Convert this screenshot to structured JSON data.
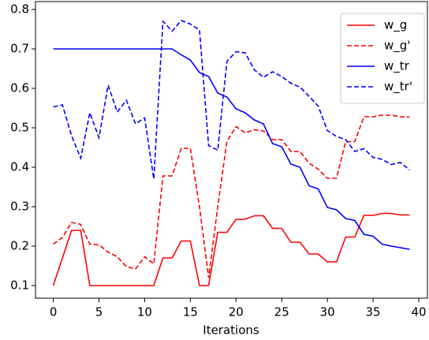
{
  "chart_data": {
    "type": "line",
    "xlabel": "Iterations",
    "x": [
      0,
      1,
      2,
      3,
      4,
      5,
      6,
      7,
      8,
      9,
      10,
      11,
      12,
      13,
      14,
      15,
      16,
      17,
      18,
      19,
      20,
      21,
      22,
      23,
      24,
      25,
      26,
      27,
      28,
      29,
      30,
      31,
      32,
      33,
      34,
      35,
      36,
      37,
      38,
      39
    ],
    "xlim": [
      -1.95,
      40.95
    ],
    "xticks": [
      0,
      5,
      10,
      15,
      20,
      25,
      30,
      35,
      40
    ],
    "ylim": [
      0.068,
      0.82
    ],
    "yticks": [
      0.1,
      0.2,
      0.3,
      0.4,
      0.5,
      0.6,
      0.7,
      0.8
    ],
    "legend": "upper right",
    "series": [
      {
        "name": "w_g",
        "color": "#ff0000",
        "linestyle": "solid",
        "values": [
          0.1,
          0.17,
          0.24,
          0.24,
          0.1,
          0.1,
          0.1,
          0.1,
          0.1,
          0.1,
          0.1,
          0.1,
          0.17,
          0.17,
          0.213,
          0.213,
          0.1,
          0.1,
          0.235,
          0.235,
          0.268,
          0.268,
          0.277,
          0.277,
          0.245,
          0.245,
          0.21,
          0.21,
          0.18,
          0.18,
          0.16,
          0.16,
          0.223,
          0.223,
          0.278,
          0.278,
          0.283,
          0.283,
          0.279,
          0.279
        ]
      },
      {
        "name": "w_g'",
        "color": "#ff0000",
        "linestyle": "dashed",
        "values": [
          0.205,
          0.222,
          0.26,
          0.255,
          0.205,
          0.203,
          0.185,
          0.173,
          0.148,
          0.142,
          0.173,
          0.155,
          0.378,
          0.378,
          0.448,
          0.448,
          0.3,
          0.12,
          0.3,
          0.465,
          0.503,
          0.487,
          0.495,
          0.492,
          0.47,
          0.47,
          0.44,
          0.44,
          0.41,
          0.395,
          0.372,
          0.372,
          0.465,
          0.465,
          0.528,
          0.528,
          0.532,
          0.532,
          0.528,
          0.527
        ]
      },
      {
        "name": "w_tr",
        "color": "#0000ff",
        "linestyle": "solid",
        "values": [
          0.7,
          0.7,
          0.7,
          0.7,
          0.7,
          0.7,
          0.7,
          0.7,
          0.7,
          0.7,
          0.7,
          0.7,
          0.7,
          0.7,
          0.685,
          0.672,
          0.64,
          0.63,
          0.588,
          0.578,
          0.548,
          0.538,
          0.52,
          0.51,
          0.46,
          0.452,
          0.408,
          0.4,
          0.353,
          0.345,
          0.298,
          0.292,
          0.27,
          0.265,
          0.23,
          0.225,
          0.205,
          0.2,
          0.196,
          0.192
        ]
      },
      {
        "name": "w_tr'",
        "color": "#0000ff",
        "linestyle": "dashed",
        "values": [
          0.553,
          0.558,
          0.48,
          0.423,
          0.538,
          0.475,
          0.608,
          0.54,
          0.57,
          0.51,
          0.525,
          0.37,
          0.77,
          0.745,
          0.772,
          0.763,
          0.748,
          0.455,
          0.443,
          0.668,
          0.693,
          0.69,
          0.647,
          0.628,
          0.642,
          0.63,
          0.613,
          0.603,
          0.58,
          0.555,
          0.493,
          0.478,
          0.47,
          0.44,
          0.447,
          0.425,
          0.42,
          0.407,
          0.412,
          0.393
        ]
      }
    ]
  }
}
